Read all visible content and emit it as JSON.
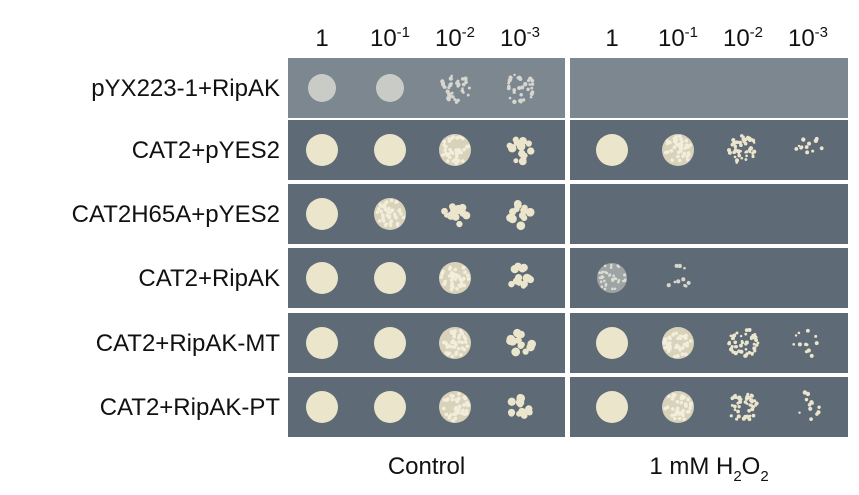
{
  "rows": [
    "pYX223-1+RipAK",
    "CAT2+pYES2",
    "CAT2H65A+pYES2",
    "CAT2+RipAK",
    "CAT2+RipAK-MT",
    "CAT2+RipAK-PT"
  ],
  "panels": [
    {
      "label": [
        {
          "text": "Control"
        }
      ],
      "headers": [
        {
          "base": "1"
        },
        {
          "base": "10",
          "exp": "-1"
        },
        {
          "base": "10",
          "exp": "-2"
        },
        {
          "base": "10",
          "exp": "-3"
        }
      ]
    },
    {
      "label": [
        {
          "text": "1 mM H"
        },
        {
          "sub": "2"
        },
        {
          "text": "O"
        },
        {
          "sub": "2"
        }
      ],
      "headers": [
        {
          "base": "1"
        },
        {
          "base": "10",
          "exp": "-1"
        },
        {
          "base": "10",
          "exp": "-2"
        },
        {
          "base": "10",
          "exp": "-3"
        }
      ]
    }
  ]
}
